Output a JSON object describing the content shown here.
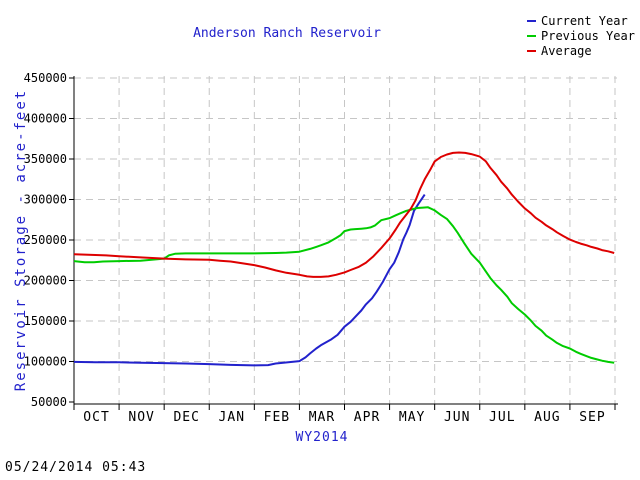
{
  "page": {
    "timestamp": "05/24/2014 05:43"
  },
  "chart_data": {
    "type": "line",
    "title": "Anderson Ranch Reservoir",
    "xlabel": "WY2014",
    "ylabel": "Reservoir Storage - acre-feet",
    "categories": [
      "OCT",
      "NOV",
      "DEC",
      "JAN",
      "FEB",
      "MAR",
      "APR",
      "MAY",
      "JUN",
      "JUL",
      "AUG",
      "SEP"
    ],
    "ylim": [
      50000,
      450000
    ],
    "y_tick_interval": 50000,
    "grid": true,
    "legend_position": "top-right",
    "colors": {
      "text_accent": "#2222cc",
      "grid": "#c6c6c6",
      "axis": "#000000"
    },
    "series": [
      {
        "name": "Current Year",
        "color": "#2222cc",
        "points": [
          [
            "10-01",
            99500
          ],
          [
            "10-15",
            99000
          ],
          [
            "11-01",
            99000
          ],
          [
            "11-15",
            98500
          ],
          [
            "12-01",
            98000
          ],
          [
            "12-15",
            97500
          ],
          [
            "01-01",
            96800
          ],
          [
            "01-15",
            95800
          ],
          [
            "02-01",
            95200
          ],
          [
            "02-10",
            95500
          ],
          [
            "02-15",
            97500
          ],
          [
            "02-20",
            98500
          ],
          [
            "03-01",
            100500
          ],
          [
            "03-05",
            105000
          ],
          [
            "03-08",
            110000
          ],
          [
            "03-12",
            116000
          ],
          [
            "03-15",
            120000
          ],
          [
            "03-22",
            127500
          ],
          [
            "03-26",
            133000
          ],
          [
            "04-01",
            143000
          ],
          [
            "04-05",
            149000
          ],
          [
            "04-08",
            155000
          ],
          [
            "04-12",
            163000
          ],
          [
            "04-15",
            170500
          ],
          [
            "04-19",
            178000
          ],
          [
            "04-22",
            186000
          ],
          [
            "04-26",
            198000
          ],
          [
            "05-01",
            214000
          ],
          [
            "05-04",
            222000
          ],
          [
            "05-07",
            235000
          ],
          [
            "05-10",
            251000
          ],
          [
            "05-12",
            259000
          ],
          [
            "05-14",
            268000
          ],
          [
            "05-17",
            286000
          ],
          [
            "05-20",
            295000
          ],
          [
            "05-24",
            306000
          ]
        ]
      },
      {
        "name": "Previous Year",
        "color": "#00cc00",
        "points": [
          [
            "10-01",
            224000
          ],
          [
            "10-08",
            222500
          ],
          [
            "10-14",
            222500
          ],
          [
            "10-20",
            223500
          ],
          [
            "11-01",
            224000
          ],
          [
            "11-15",
            224500
          ],
          [
            "12-01",
            227000
          ],
          [
            "12-04",
            231000
          ],
          [
            "12-08",
            233000
          ],
          [
            "12-15",
            233500
          ],
          [
            "01-01",
            233500
          ],
          [
            "01-15",
            233500
          ],
          [
            "02-01",
            233500
          ],
          [
            "02-15",
            234000
          ],
          [
            "02-22",
            234500
          ],
          [
            "03-01",
            235500
          ],
          [
            "03-08",
            239000
          ],
          [
            "03-12",
            241500
          ],
          [
            "03-15",
            243500
          ],
          [
            "03-20",
            247000
          ],
          [
            "03-25",
            252500
          ],
          [
            "03-28",
            256000
          ],
          [
            "04-01",
            261000
          ],
          [
            "04-05",
            263000
          ],
          [
            "04-08",
            263500
          ],
          [
            "04-12",
            264000
          ],
          [
            "04-15",
            264500
          ],
          [
            "04-18",
            265500
          ],
          [
            "04-21",
            268000
          ],
          [
            "04-25",
            274500
          ],
          [
            "05-01",
            277000
          ],
          [
            "05-05",
            280500
          ],
          [
            "05-08",
            283000
          ],
          [
            "05-12",
            286000
          ],
          [
            "05-15",
            287500
          ],
          [
            "05-19",
            289500
          ],
          [
            "05-23",
            290000
          ],
          [
            "05-26",
            290500
          ],
          [
            "06-01",
            286500
          ],
          [
            "06-05",
            281000
          ],
          [
            "06-09",
            276000
          ],
          [
            "06-13",
            267000
          ],
          [
            "06-16",
            259000
          ],
          [
            "06-20",
            247000
          ],
          [
            "06-25",
            233000
          ],
          [
            "07-01",
            222000
          ],
          [
            "07-05",
            211000
          ],
          [
            "07-08",
            203000
          ],
          [
            "07-12",
            194000
          ],
          [
            "07-15",
            188500
          ],
          [
            "07-19",
            180000
          ],
          [
            "07-22",
            172000
          ],
          [
            "07-26",
            165000
          ],
          [
            "08-01",
            158000
          ],
          [
            "08-05",
            150500
          ],
          [
            "08-08",
            144000
          ],
          [
            "08-12",
            138000
          ],
          [
            "08-15",
            132000
          ],
          [
            "08-19",
            127000
          ],
          [
            "08-22",
            123000
          ],
          [
            "08-26",
            119000
          ],
          [
            "09-01",
            116000
          ],
          [
            "09-05",
            112000
          ],
          [
            "09-08",
            109500
          ],
          [
            "09-12",
            106500
          ],
          [
            "09-15",
            104500
          ],
          [
            "09-19",
            102500
          ],
          [
            "09-22",
            101000
          ],
          [
            "09-26",
            99500
          ],
          [
            "09-30",
            98500
          ]
        ]
      },
      {
        "name": "Average",
        "color": "#dd0000",
        "points": [
          [
            "10-01",
            232500
          ],
          [
            "10-08",
            232000
          ],
          [
            "10-15",
            231500
          ],
          [
            "10-22",
            231000
          ],
          [
            "11-01",
            230000
          ],
          [
            "11-15",
            228500
          ],
          [
            "12-01",
            227000
          ],
          [
            "12-15",
            226000
          ],
          [
            "01-01",
            225500
          ],
          [
            "01-08",
            224500
          ],
          [
            "01-15",
            223500
          ],
          [
            "01-22",
            221500
          ],
          [
            "02-01",
            219000
          ],
          [
            "02-08",
            216000
          ],
          [
            "02-15",
            212500
          ],
          [
            "02-22",
            209500
          ],
          [
            "03-01",
            207000
          ],
          [
            "03-06",
            205000
          ],
          [
            "03-10",
            204500
          ],
          [
            "03-15",
            204500
          ],
          [
            "03-20",
            205000
          ],
          [
            "03-25",
            207000
          ],
          [
            "04-01",
            210000
          ],
          [
            "04-05",
            213000
          ],
          [
            "04-10",
            216500
          ],
          [
            "04-15",
            222000
          ],
          [
            "04-20",
            230000
          ],
          [
            "04-25",
            240000
          ],
          [
            "05-01",
            252000
          ],
          [
            "05-05",
            263000
          ],
          [
            "05-08",
            272000
          ],
          [
            "05-12",
            281500
          ],
          [
            "05-15",
            289000
          ],
          [
            "05-18",
            299000
          ],
          [
            "05-21",
            313000
          ],
          [
            "05-24",
            325000
          ],
          [
            "05-28",
            338000
          ],
          [
            "06-01",
            347000
          ],
          [
            "06-05",
            352500
          ],
          [
            "06-09",
            355500
          ],
          [
            "06-13",
            357500
          ],
          [
            "06-17",
            358000
          ],
          [
            "06-21",
            357500
          ],
          [
            "06-25",
            356000
          ],
          [
            "07-01",
            353000
          ],
          [
            "07-05",
            347000
          ],
          [
            "07-08",
            339000
          ],
          [
            "07-12",
            330000
          ],
          [
            "07-15",
            322000
          ],
          [
            "07-19",
            313500
          ],
          [
            "07-22",
            306000
          ],
          [
            "07-26",
            297500
          ],
          [
            "08-01",
            289000
          ],
          [
            "08-05",
            283000
          ],
          [
            "08-08",
            277500
          ],
          [
            "08-12",
            272500
          ],
          [
            "08-15",
            268000
          ],
          [
            "08-19",
            263500
          ],
          [
            "08-22",
            259500
          ],
          [
            "08-26",
            255000
          ],
          [
            "09-01",
            250500
          ],
          [
            "09-05",
            247500
          ],
          [
            "09-08",
            245500
          ],
          [
            "09-12",
            243500
          ],
          [
            "09-15",
            241500
          ],
          [
            "09-19",
            239500
          ],
          [
            "09-22",
            237500
          ],
          [
            "09-26",
            236000
          ],
          [
            "09-30",
            234000
          ]
        ]
      }
    ]
  }
}
